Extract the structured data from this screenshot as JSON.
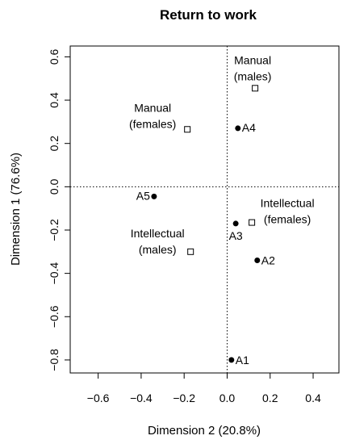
{
  "chart_data": {
    "type": "scatter",
    "title": "Return to work",
    "xlabel": "Dimension 2 (20.8%)",
    "ylabel": "Dimension 1 (76.6%)",
    "xlim": [
      -0.73,
      0.52
    ],
    "ylim": [
      -0.86,
      0.65
    ],
    "x_ticks": [
      -0.6,
      -0.4,
      -0.2,
      0.0,
      0.2,
      0.4
    ],
    "x_tick_labels": [
      "−0.6",
      "−0.4",
      "−0.2",
      "0.0",
      "0.2",
      "0.4"
    ],
    "y_ticks": [
      -0.8,
      -0.6,
      -0.4,
      -0.2,
      0.0,
      0.2,
      0.4,
      0.6
    ],
    "y_tick_labels": [
      "−0.8",
      "−0.6",
      "−0.4",
      "−0.2",
      "0.0",
      "0.2",
      "0.4",
      "0.6"
    ],
    "reference_lines": {
      "x": 0,
      "y": 0,
      "style": "dotted"
    },
    "grid": false,
    "series": [
      {
        "marker": "filled-circle",
        "points": [
          {
            "label": "A1",
            "x": 0.02,
            "y": -0.8
          },
          {
            "label": "A2",
            "x": 0.14,
            "y": -0.34
          },
          {
            "label": "A3",
            "x": 0.04,
            "y": -0.17
          },
          {
            "label": "A4",
            "x": 0.05,
            "y": 0.27
          },
          {
            "label": "A5",
            "x": -0.34,
            "y": -0.045
          }
        ]
      },
      {
        "marker": "open-square",
        "points": [
          {
            "label": [
              "Manual",
              "(males)"
            ],
            "x": 0.13,
            "y": 0.455
          },
          {
            "label": [
              "Manual",
              "(females)"
            ],
            "x": -0.185,
            "y": 0.265
          },
          {
            "label": [
              "Intellectual",
              "(females)"
            ],
            "x": 0.115,
            "y": -0.165
          },
          {
            "label": [
              "Intellectual",
              "(males)"
            ],
            "x": -0.17,
            "y": -0.3
          }
        ]
      }
    ]
  }
}
